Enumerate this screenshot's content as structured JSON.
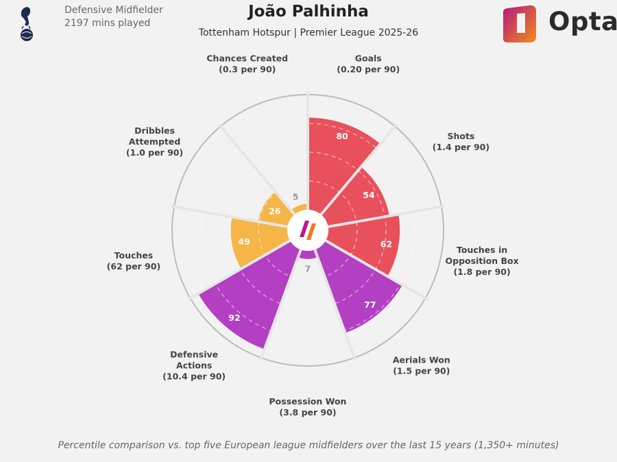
{
  "header": {
    "position": "Defensive Midfielder",
    "minutes": "2197 mins played",
    "title": "João Palhinha",
    "subtitle": "Tottenham Hotspur | Premier League 2025-26",
    "brand": "Opta"
  },
  "colors": {
    "attacking": "#e8505b",
    "possession": "#f5b547",
    "defending": "#b33fc2",
    "background": "#f2f2f2"
  },
  "chart_data": {
    "type": "radar",
    "scale_max": 100,
    "slices": [
      {
        "metric": "Goals",
        "value_label": "(0.20 per 90)",
        "percentile": 80,
        "group": "attacking"
      },
      {
        "metric": "Shots",
        "value_label": "(1.4 per 90)",
        "percentile": 54,
        "group": "attacking"
      },
      {
        "metric": "Touches in Opposition Box",
        "value_label": "(1.8 per 90)",
        "percentile": 62,
        "group": "attacking"
      },
      {
        "metric": "Aerials Won",
        "value_label": "(1.5 per 90)",
        "percentile": 77,
        "group": "defending"
      },
      {
        "metric": "Possession Won",
        "value_label": "(3.8 per 90)",
        "percentile": 7,
        "group": "defending"
      },
      {
        "metric": "Defensive Actions",
        "value_label": "(10.4 per 90)",
        "percentile": 92,
        "group": "defending"
      },
      {
        "metric": "Touches",
        "value_label": "(62 per 90)",
        "percentile": 49,
        "group": "possession"
      },
      {
        "metric": "Dribbles Attempted",
        "value_label": "(1.0 per 90)",
        "percentile": 26,
        "group": "possession"
      },
      {
        "metric": "Chances Created",
        "value_label": "(0.3 per 90)",
        "percentile": 5,
        "group": "possession"
      }
    ]
  },
  "footnote": "Percentile comparison vs. top five European league midfielders over the last 15 years (1,350+ minutes)"
}
